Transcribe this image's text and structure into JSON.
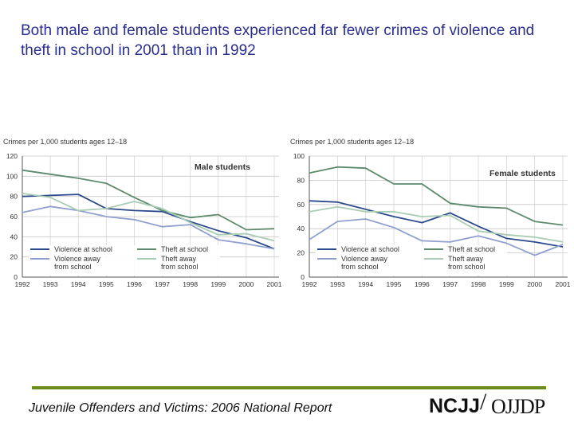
{
  "title": "Both male and female students experienced far fewer crimes of violence and theft in school in 2001 than in 1992",
  "footer": {
    "text": "Juvenile Offenders and Victims: 2006 National Report",
    "logo_left": "NCJJ",
    "logo_slash": "/",
    "logo_right": "OJJDP"
  },
  "colors": {
    "violence_at_school": "#2b4a8c",
    "violence_away": "#8fa0cf",
    "theft_at_school": "#5c8a6c",
    "theft_away": "#a8ccb4",
    "grid": "#c8c8c8",
    "accent": "#6a8c1c"
  },
  "chart_data": [
    {
      "type": "line",
      "title": "Male students",
      "ylabel": "Crimes per 1,000 students ages 12–18",
      "xlabel": "",
      "x": [
        "1992",
        "1993",
        "1994",
        "1995",
        "1996",
        "1997",
        "1998",
        "1999",
        "2000",
        "2001"
      ],
      "ylim": [
        0,
        120
      ],
      "yticks": [
        0,
        20,
        40,
        60,
        80,
        100,
        120
      ],
      "grid": true,
      "legend": "bottom-left",
      "series": [
        {
          "name": "Violence at school",
          "key": "violence_at_school",
          "values": [
            80,
            81,
            82,
            68,
            66,
            65,
            55,
            46,
            39,
            28
          ]
        },
        {
          "name": "Violence away from school",
          "key": "violence_away",
          "values": [
            64,
            70,
            66,
            60,
            57,
            50,
            52,
            37,
            33,
            28
          ]
        },
        {
          "name": "Theft at school",
          "key": "theft_at_school",
          "values": [
            106,
            102,
            98,
            93,
            79,
            66,
            59,
            62,
            47,
            48
          ]
        },
        {
          "name": "Theft away from school",
          "key": "theft_away",
          "values": [
            83,
            79,
            66,
            68,
            75,
            68,
            54,
            42,
            43,
            36
          ]
        }
      ],
      "legend_entries": [
        {
          "key": "violence_at_school",
          "label": [
            "Violence at school"
          ]
        },
        {
          "key": "violence_away",
          "label": [
            "Violence away",
            "from school"
          ]
        },
        {
          "key": "theft_at_school",
          "label": [
            "Theft at school"
          ]
        },
        {
          "key": "theft_away",
          "label": [
            "Theft away",
            "from school"
          ]
        }
      ]
    },
    {
      "type": "line",
      "title": "Female students",
      "ylabel": "Crimes per 1,000 students ages 12–18",
      "xlabel": "",
      "x": [
        "1992",
        "1993",
        "1994",
        "1995",
        "1996",
        "1997",
        "1998",
        "1999",
        "2000",
        "2001"
      ],
      "ylim": [
        0,
        100
      ],
      "yticks": [
        0,
        20,
        40,
        60,
        80,
        100
      ],
      "grid": true,
      "legend": "bottom-left",
      "series": [
        {
          "name": "Violence at school",
          "key": "violence_at_school",
          "values": [
            63,
            62,
            56,
            50,
            45,
            53,
            42,
            32,
            29,
            25
          ]
        },
        {
          "name": "Violence away from school",
          "key": "violence_away",
          "values": [
            31,
            46,
            48,
            41,
            30,
            29,
            34,
            28,
            18,
            27
          ]
        },
        {
          "name": "Theft at school",
          "key": "theft_at_school",
          "values": [
            86,
            91,
            90,
            77,
            77,
            61,
            58,
            57,
            46,
            43
          ]
        },
        {
          "name": "Theft away from school",
          "key": "theft_away",
          "values": [
            54,
            58,
            54,
            54,
            50,
            51,
            38,
            35,
            33,
            29
          ]
        }
      ],
      "legend_entries": [
        {
          "key": "violence_at_school",
          "label": [
            "Violence at school"
          ]
        },
        {
          "key": "violence_away",
          "label": [
            "Violence away",
            "from school"
          ]
        },
        {
          "key": "theft_at_school",
          "label": [
            "Theft at school"
          ]
        },
        {
          "key": "theft_away",
          "label": [
            "Theft away",
            "from school"
          ]
        }
      ]
    }
  ]
}
